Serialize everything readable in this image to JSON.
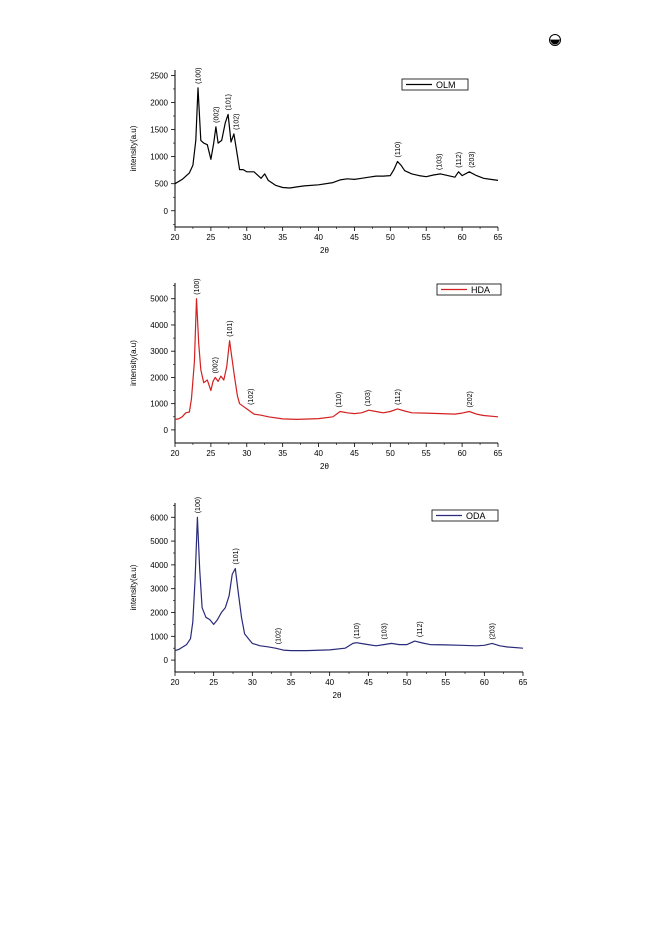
{
  "chart_data": [
    {
      "type": "line",
      "xlabel": "2θ",
      "ylabel": "intensity(a.u)",
      "xlim": [
        20,
        65
      ],
      "ylim": [
        -300,
        2600
      ],
      "xticks": [
        20,
        25,
        30,
        35,
        40,
        45,
        50,
        55,
        60,
        65
      ],
      "yticks": [
        0,
        500,
        1000,
        1500,
        2000,
        2500
      ],
      "legend": "top-right",
      "series": [
        {
          "name": "OLM",
          "color": "#000000",
          "x": [
            20,
            21,
            22,
            22.5,
            22.9,
            23.2,
            23.6,
            24,
            24.5,
            25,
            25.4,
            25.7,
            26,
            26.5,
            27,
            27.4,
            27.8,
            28.2,
            28.5,
            29,
            29.5,
            30,
            31,
            32,
            32.5,
            33,
            34,
            35,
            36,
            37,
            38,
            40,
            42,
            43,
            44,
            45,
            46,
            47,
            48,
            49,
            50,
            50.5,
            51,
            51.5,
            52,
            53,
            54,
            55,
            56,
            57,
            58,
            59,
            59.5,
            60,
            61,
            62,
            63,
            64,
            65
          ],
          "values": [
            500,
            580,
            700,
            840,
            1300,
            2270,
            1300,
            1250,
            1220,
            950,
            1260,
            1550,
            1250,
            1300,
            1620,
            1780,
            1270,
            1420,
            1180,
            760,
            760,
            720,
            720,
            600,
            680,
            560,
            470,
            430,
            420,
            440,
            460,
            480,
            520,
            570,
            590,
            580,
            600,
            620,
            640,
            640,
            650,
            760,
            910,
            840,
            740,
            680,
            650,
            630,
            660,
            680,
            650,
            620,
            720,
            650,
            720,
            650,
            600,
            580,
            560
          ]
        }
      ],
      "annotations": [
        {
          "text": "(100)",
          "x": 23.2,
          "y": 2270
        },
        {
          "text": "(002)",
          "x": 25.7,
          "y": 1550
        },
        {
          "text": "(101)",
          "x": 27.4,
          "y": 1780
        },
        {
          "text": "(102)",
          "x": 28.5,
          "y": 1420
        },
        {
          "text": "(110)",
          "x": 51,
          "y": 910
        },
        {
          "text": "(103)",
          "x": 56.8,
          "y": 680
        },
        {
          "text": "(112)",
          "x": 59.5,
          "y": 720
        },
        {
          "text": "(203)",
          "x": 61.3,
          "y": 720
        }
      ]
    },
    {
      "type": "line",
      "xlabel": "2θ",
      "ylabel": "intensity(a.u)",
      "xlim": [
        20,
        65
      ],
      "ylim": [
        -500,
        5600
      ],
      "xticks": [
        20,
        25,
        30,
        35,
        40,
        45,
        50,
        55,
        60,
        65
      ],
      "yticks": [
        0,
        1000,
        2000,
        3000,
        4000,
        5000
      ],
      "legend": "top-right",
      "series": [
        {
          "name": "HDA",
          "color": "#d42020",
          "x": [
            20,
            20.5,
            21,
            21.5,
            22,
            22.3,
            22.7,
            23,
            23.3,
            23.6,
            24,
            24.5,
            25,
            25.3,
            25.6,
            26,
            26.4,
            26.8,
            27.2,
            27.6,
            27.9,
            28.3,
            28.7,
            29,
            29.5,
            30,
            31,
            32,
            33,
            35,
            37,
            40,
            42,
            43,
            44,
            45,
            46,
            47,
            48,
            49,
            50,
            51,
            52,
            53,
            55,
            57,
            59,
            60,
            61,
            62,
            63,
            65
          ],
          "values": [
            400,
            420,
            500,
            650,
            680,
            1200,
            2600,
            5000,
            3300,
            2300,
            1800,
            1900,
            1500,
            1850,
            2000,
            1850,
            2050,
            1900,
            2400,
            3400,
            2800,
            2000,
            1300,
            1000,
            900,
            800,
            600,
            560,
            500,
            420,
            400,
            430,
            500,
            700,
            650,
            620,
            650,
            750,
            700,
            650,
            700,
            800,
            720,
            650,
            640,
            620,
            600,
            640,
            700,
            600,
            550,
            500
          ]
        }
      ],
      "annotations": [
        {
          "text": "(100)",
          "x": 23,
          "y": 5000
        },
        {
          "text": "(002)",
          "x": 25.6,
          "y": 2000
        },
        {
          "text": "(101)",
          "x": 27.6,
          "y": 3400
        },
        {
          "text": "(102)",
          "x": 30.5,
          "y": 800
        },
        {
          "text": "(110)",
          "x": 42.8,
          "y": 700
        },
        {
          "text": "(103)",
          "x": 46.8,
          "y": 750
        },
        {
          "text": "(112)",
          "x": 51,
          "y": 800
        },
        {
          "text": "(202)",
          "x": 61,
          "y": 700
        }
      ]
    },
    {
      "type": "line",
      "xlabel": "2θ",
      "ylabel": "intensity(a.u)",
      "xlim": [
        20,
        65
      ],
      "ylim": [
        -500,
        6600
      ],
      "xticks": [
        20,
        25,
        30,
        35,
        40,
        45,
        50,
        55,
        60,
        65
      ],
      "yticks": [
        0,
        1000,
        2000,
        3000,
        4000,
        5000,
        6000
      ],
      "legend": "top-right",
      "series": [
        {
          "name": "ODA",
          "color": "#2a2a7a",
          "x": [
            20,
            20.5,
            21,
            21.5,
            22,
            22.3,
            22.6,
            22.9,
            23.2,
            23.5,
            24,
            24.5,
            25,
            25.5,
            26,
            26.5,
            27,
            27.4,
            27.8,
            28.2,
            28.6,
            29,
            29.5,
            30,
            31,
            32,
            33,
            34,
            35,
            37,
            40,
            42,
            43,
            43.5,
            44,
            45,
            46,
            47,
            48,
            49,
            50,
            51,
            52,
            53,
            55,
            57,
            59,
            60,
            61,
            62,
            63,
            65
          ],
          "values": [
            400,
            450,
            550,
            650,
            900,
            1600,
            3400,
            6000,
            3800,
            2200,
            1800,
            1700,
            1500,
            1700,
            2000,
            2200,
            2700,
            3600,
            3850,
            2800,
            1800,
            1100,
            900,
            700,
            600,
            560,
            500,
            420,
            400,
            400,
            430,
            500,
            700,
            730,
            700,
            650,
            600,
            650,
            700,
            650,
            650,
            800,
            720,
            650,
            640,
            620,
            600,
            620,
            700,
            600,
            550,
            500
          ]
        }
      ],
      "annotations": [
        {
          "text": "(100)",
          "x": 22.9,
          "y": 6000
        },
        {
          "text": "(101)",
          "x": 27.8,
          "y": 3850
        },
        {
          "text": "(102)",
          "x": 33.3,
          "y": 500
        },
        {
          "text": "(110)",
          "x": 43.5,
          "y": 730
        },
        {
          "text": "(103)",
          "x": 47,
          "y": 700
        },
        {
          "text": "(112)",
          "x": 51.6,
          "y": 800
        },
        {
          "text": "(203)",
          "x": 61,
          "y": 700
        }
      ]
    }
  ]
}
